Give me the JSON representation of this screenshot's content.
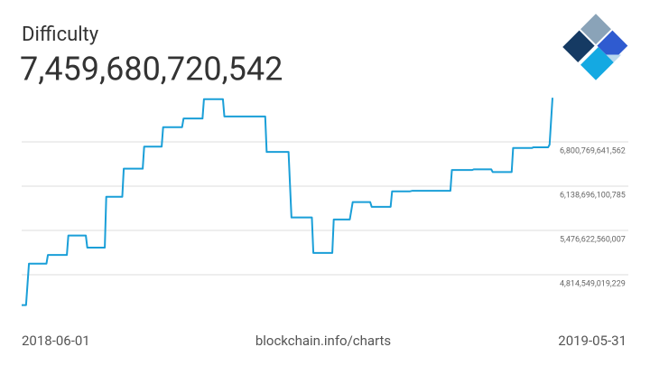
{
  "chart_data": {
    "type": "line",
    "title": "Difficulty",
    "subtitle": "7,459,680,720,542",
    "source": "blockchain.info/charts",
    "x": [
      "2018-06-01",
      "2018-06-04",
      "2018-06-06",
      "2018-06-18",
      "2018-06-19",
      "2018-07-02",
      "2018-07-03",
      "2018-07-15",
      "2018-07-16",
      "2018-07-28",
      "2018-07-29",
      "2018-08-09",
      "2018-08-10",
      "2018-08-23",
      "2018-08-24",
      "2018-09-05",
      "2018-09-06",
      "2018-09-19",
      "2018-09-20",
      "2018-10-03",
      "2018-10-04",
      "2018-10-17",
      "2018-10-18",
      "2018-11-15",
      "2018-11-16",
      "2018-12-01",
      "2018-12-03",
      "2018-12-17",
      "2018-12-18",
      "2018-12-31",
      "2019-01-01",
      "2019-01-12",
      "2019-01-14",
      "2019-01-26",
      "2019-01-27",
      "2019-02-09",
      "2019-02-10",
      "2019-02-22",
      "2019-02-24",
      "2019-03-22",
      "2019-03-23",
      "2019-04-06",
      "2019-04-07",
      "2019-04-19",
      "2019-04-20",
      "2019-05-03",
      "2019-05-04",
      "2019-05-17",
      "2019-05-18",
      "2019-05-28",
      "2019-05-29",
      "2019-05-31"
    ],
    "series": [
      {
        "color": "#1a9fd8",
        "values": [
          4360000000000,
          4360000000000,
          4980000000000,
          4980000000000,
          5110000000000,
          5110000000000,
          5400000000000,
          5400000000000,
          5220000000000,
          5220000000000,
          5980000000000,
          5980000000000,
          6400000000000,
          6400000000000,
          6730000000000,
          6730000000000,
          7020000000000,
          7020000000000,
          7150000000000,
          7150000000000,
          7440000000000,
          7440000000000,
          7180000000000,
          7180000000000,
          6650000000000,
          6650000000000,
          5670000000000,
          5670000000000,
          5140000000000,
          5140000000000,
          5640000000000,
          5640000000000,
          5900000000000,
          5900000000000,
          5830000000000,
          5830000000000,
          6060000000000,
          6060000000000,
          6070000000000,
          6070000000000,
          6380000000000,
          6380000000000,
          6390000000000,
          6390000000000,
          6350000000000,
          6350000000000,
          6710000000000,
          6710000000000,
          6720000000000,
          6720000000000,
          6760000000000,
          7459680720542
        ]
      }
    ],
    "xlim": [
      "2018-06-01",
      "2019-05-31"
    ],
    "xticks": [
      "2018-06-01",
      "2019-05-31"
    ],
    "ylim": [
      4260000000000,
      7571000000000
    ],
    "yticks": [
      {
        "value": 4814549019229,
        "label": "4,814,549,019,229"
      },
      {
        "value": 5476622560007,
        "label": "5,476,622,560,007"
      },
      {
        "value": 6138696100785,
        "label": "6,138,696,100,785"
      },
      {
        "value": 6800769641562,
        "label": "6,800,769,641,562"
      }
    ],
    "grid": true
  }
}
